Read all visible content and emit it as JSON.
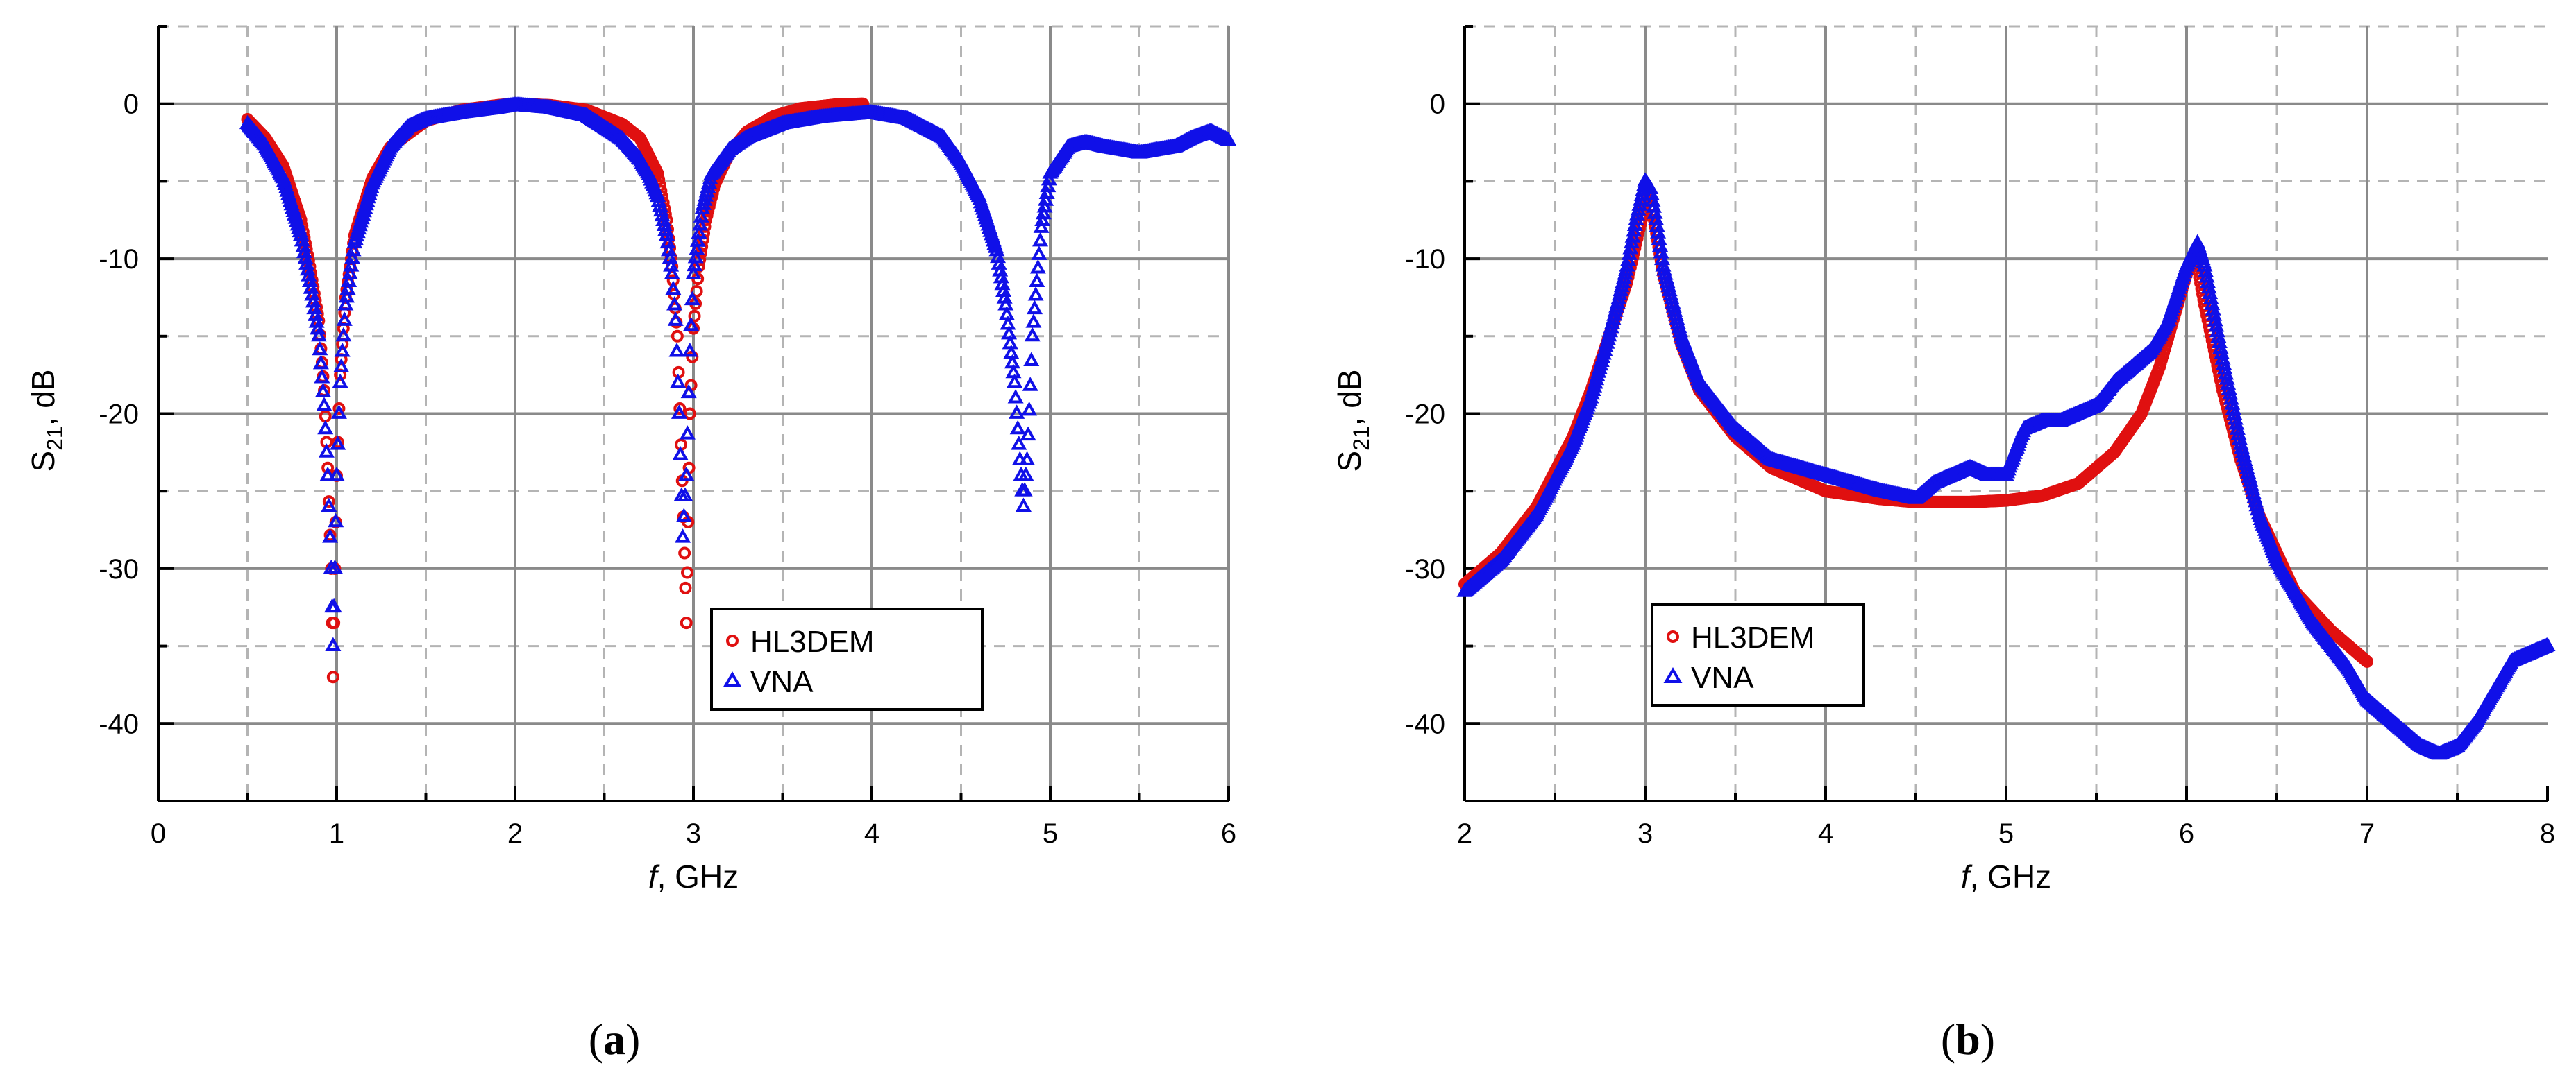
{
  "chart_data": [
    {
      "type": "scatter",
      "panel_label": "(a)",
      "xlabel_var": "f",
      "xlabel_unit": ", GHz",
      "ylabel_main": "S",
      "ylabel_sub": "21",
      "ylabel_unit": ", dB",
      "xlim": [
        0,
        6
      ],
      "ylim": [
        -45,
        5
      ],
      "xticks": [
        0,
        1,
        2,
        3,
        4,
        5,
        6
      ],
      "yticks": [
        0,
        -10,
        -20,
        -30,
        -40
      ],
      "grid": true,
      "legend_position": "lower-center-right",
      "colors": {
        "HL3DEM": "#e01010",
        "VNA": "#1010e8"
      },
      "series": [
        {
          "name": "HL3DEM",
          "marker": "circle",
          "x": [
            0.5,
            0.6,
            0.7,
            0.8,
            0.85,
            0.9,
            0.93,
            0.95,
            0.97,
            0.98,
            0.99,
            1.0,
            1.02,
            1.05,
            1.1,
            1.2,
            1.3,
            1.5,
            1.7,
            1.9,
            2.0,
            2.2,
            2.4,
            2.6,
            2.7,
            2.8,
            2.85,
            2.88,
            2.91,
            2.93,
            2.95,
            2.96,
            2.97,
            2.98,
            3.0,
            3.03,
            3.07,
            3.12,
            3.2,
            3.3,
            3.45,
            3.6,
            3.8,
            3.95
          ],
          "y": [
            -1.0,
            -2.2,
            -4.0,
            -7.5,
            -10.5,
            -14.0,
            -18.5,
            -23.5,
            -30.0,
            -37.0,
            -30.0,
            -24.0,
            -17.5,
            -12.5,
            -8.5,
            -4.8,
            -2.8,
            -1.1,
            -0.4,
            -0.1,
            0.0,
            -0.1,
            -0.4,
            -1.3,
            -2.2,
            -4.5,
            -7.5,
            -10.5,
            -15.0,
            -22.0,
            -29.0,
            -33.5,
            -27.0,
            -20.0,
            -14.5,
            -10.5,
            -7.5,
            -5.2,
            -3.2,
            -1.8,
            -0.8,
            -0.3,
            -0.05,
            0.0
          ]
        },
        {
          "name": "VNA",
          "marker": "triangle",
          "x": [
            0.5,
            0.6,
            0.7,
            0.8,
            0.85,
            0.9,
            0.93,
            0.95,
            0.97,
            0.98,
            0.99,
            1.0,
            1.02,
            1.05,
            1.1,
            1.2,
            1.3,
            1.4,
            1.5,
            1.7,
            1.9,
            2.0,
            2.2,
            2.4,
            2.6,
            2.7,
            2.75,
            2.8,
            2.85,
            2.88,
            2.9,
            2.92,
            2.94,
            2.96,
            2.98,
            3.0,
            3.05,
            3.1,
            3.2,
            3.3,
            3.5,
            3.7,
            4.0,
            4.2,
            4.4,
            4.5,
            4.6,
            4.7,
            4.75,
            4.8,
            4.83,
            4.85,
            4.87,
            4.9,
            4.95,
            5.0,
            5.1,
            5.2,
            5.3,
            5.5,
            5.7,
            5.8,
            5.9,
            6.0
          ],
          "y": [
            -1.3,
            -2.7,
            -4.8,
            -8.5,
            -11.5,
            -15.0,
            -19.5,
            -24.0,
            -30.0,
            -35.0,
            -30.0,
            -24.0,
            -18.0,
            -13.0,
            -9.0,
            -5.2,
            -2.8,
            -1.5,
            -1.0,
            -0.6,
            -0.3,
            -0.1,
            -0.3,
            -0.8,
            -2.3,
            -3.6,
            -4.6,
            -6.0,
            -8.5,
            -11.0,
            -14.0,
            -20.0,
            -28.0,
            -24.0,
            -16.0,
            -11.0,
            -6.8,
            -4.6,
            -3.0,
            -2.2,
            -1.3,
            -0.9,
            -0.6,
            -1.0,
            -2.2,
            -3.8,
            -6.0,
            -9.5,
            -13.0,
            -18.0,
            -23.0,
            -26.0,
            -23.0,
            -15.0,
            -8.0,
            -4.5,
            -2.8,
            -2.5,
            -2.8,
            -3.2,
            -2.8,
            -2.2,
            -1.8,
            -2.4
          ]
        }
      ]
    },
    {
      "type": "scatter",
      "panel_label": "(b)",
      "xlabel_var": "f",
      "xlabel_unit": ", GHz",
      "ylabel_main": "S",
      "ylabel_sub": "21",
      "ylabel_unit": ", dB",
      "xlim": [
        2,
        8
      ],
      "ylim": [
        -45,
        5
      ],
      "xticks": [
        2,
        3,
        4,
        5,
        6,
        7,
        8
      ],
      "yticks": [
        0,
        -10,
        -20,
        -30,
        -40
      ],
      "grid": true,
      "legend_position": "lower-left",
      "colors": {
        "HL3DEM": "#e01010",
        "VNA": "#1010e8"
      },
      "series": [
        {
          "name": "HL3DEM",
          "marker": "circle",
          "x": [
            2.0,
            2.2,
            2.4,
            2.6,
            2.7,
            2.8,
            2.9,
            2.95,
            3.0,
            3.02,
            3.05,
            3.1,
            3.2,
            3.3,
            3.5,
            3.7,
            4.0,
            4.3,
            4.5,
            4.8,
            5.0,
            5.2,
            5.4,
            5.6,
            5.75,
            5.85,
            5.95,
            6.0,
            6.03,
            6.06,
            6.1,
            6.2,
            6.3,
            6.4,
            6.5,
            6.6,
            6.8,
            7.0
          ],
          "y": [
            -31.0,
            -29.0,
            -26.0,
            -21.5,
            -18.5,
            -15.0,
            -11.5,
            -9.0,
            -6.5,
            -6.0,
            -7.5,
            -11.0,
            -15.5,
            -18.5,
            -21.5,
            -23.5,
            -25.0,
            -25.5,
            -25.7,
            -25.7,
            -25.6,
            -25.3,
            -24.5,
            -22.5,
            -20.0,
            -17.0,
            -13.0,
            -11.0,
            -10.0,
            -10.5,
            -13.0,
            -18.5,
            -23.0,
            -26.5,
            -29.0,
            -31.5,
            -34.0,
            -36.0
          ]
        },
        {
          "name": "VNA",
          "marker": "triangle",
          "x": [
            2.0,
            2.2,
            2.4,
            2.6,
            2.7,
            2.8,
            2.9,
            2.95,
            3.0,
            3.03,
            3.06,
            3.1,
            3.2,
            3.3,
            3.5,
            3.7,
            4.0,
            4.3,
            4.5,
            4.6,
            4.7,
            4.8,
            4.9,
            5.0,
            5.1,
            5.2,
            5.3,
            5.4,
            5.5,
            5.6,
            5.7,
            5.8,
            5.9,
            6.0,
            6.06,
            6.1,
            6.2,
            6.3,
            6.4,
            6.5,
            6.7,
            6.9,
            7.0,
            7.1,
            7.2,
            7.3,
            7.4,
            7.5,
            7.6,
            7.7,
            7.8,
            8.0
          ],
          "y": [
            -31.5,
            -29.5,
            -26.5,
            -22.0,
            -19.0,
            -15.0,
            -10.5,
            -7.5,
            -5.0,
            -5.5,
            -7.5,
            -10.5,
            -15.0,
            -18.0,
            -21.0,
            -23.0,
            -24.0,
            -25.0,
            -25.5,
            -24.5,
            -24.0,
            -23.5,
            -24.0,
            -24.0,
            -21.0,
            -20.5,
            -20.5,
            -20.0,
            -19.5,
            -18.0,
            -17.0,
            -16.0,
            -14.0,
            -10.5,
            -9.0,
            -10.5,
            -16.5,
            -22.0,
            -26.5,
            -29.5,
            -33.5,
            -36.5,
            -38.5,
            -39.5,
            -40.5,
            -41.5,
            -42.0,
            -41.5,
            -40.0,
            -38.0,
            -36.0,
            -35.0
          ]
        }
      ]
    }
  ]
}
